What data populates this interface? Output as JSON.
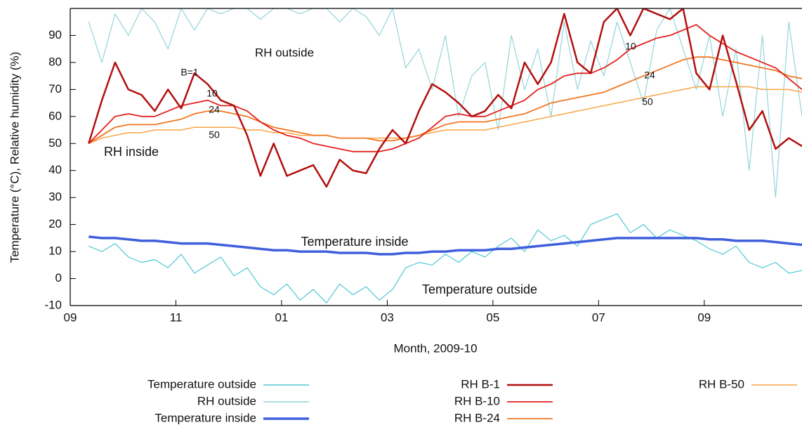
{
  "chart_data": {
    "type": "line",
    "xlabel": "Month, 2009-10",
    "ylabel": "Temperature (°C), Relative humidity (%)",
    "xlim": [
      0,
      13.85
    ],
    "ylim": [
      -10,
      100
    ],
    "xticks": [
      {
        "value": 0,
        "label": "09"
      },
      {
        "value": 2,
        "label": "11"
      },
      {
        "value": 4,
        "label": "01"
      },
      {
        "value": 6,
        "label": "03"
      },
      {
        "value": 8,
        "label": "05"
      },
      {
        "value": 10,
        "label": "07"
      },
      {
        "value": 12,
        "label": "09"
      }
    ],
    "yticks": [
      -10,
      0,
      10,
      20,
      30,
      40,
      50,
      60,
      70,
      80,
      90
    ],
    "annotations": [
      "RH outside",
      "B=1",
      "10",
      "24",
      "50",
      "RH inside",
      "Temperature inside",
      "Temperature outside",
      "10",
      "24",
      "50"
    ],
    "x": [
      0.35,
      0.6,
      0.85,
      1.1,
      1.35,
      1.6,
      1.85,
      2.1,
      2.35,
      2.6,
      2.85,
      3.1,
      3.35,
      3.6,
      3.85,
      4.1,
      4.35,
      4.6,
      4.85,
      5.1,
      5.35,
      5.6,
      5.85,
      6.1,
      6.35,
      6.6,
      6.85,
      7.1,
      7.35,
      7.6,
      7.85,
      8.1,
      8.35,
      8.6,
      8.85,
      9.1,
      9.35,
      9.6,
      9.85,
      10.1,
      10.35,
      10.6,
      10.85,
      11.1,
      11.35,
      11.6,
      11.85,
      12.1,
      12.35,
      12.6,
      12.85,
      13.1,
      13.35,
      13.6,
      13.85
    ],
    "series": [
      {
        "name": "Temperature outside",
        "color": "#4ec8d4",
        "values": [
          12,
          10,
          13,
          8,
          6,
          7,
          4,
          9,
          2,
          5,
          8,
          1,
          4,
          -3,
          -6,
          -2,
          -8,
          -4,
          -9,
          -2,
          -6,
          -3,
          -8,
          -4,
          4,
          6,
          5,
          9,
          6,
          10,
          8,
          12,
          15,
          10,
          18,
          14,
          16,
          12,
          20,
          22,
          24,
          17,
          20,
          15,
          18,
          16,
          14,
          11,
          9,
          12,
          6,
          4,
          6,
          2,
          3
        ]
      },
      {
        "name": "RH outside",
        "color": "#93d5d8",
        "values": [
          95,
          80,
          98,
          90,
          100,
          95,
          85,
          100,
          92,
          100,
          98,
          100,
          100,
          96,
          100,
          100,
          98,
          100,
          100,
          95,
          100,
          97,
          90,
          100,
          78,
          85,
          70,
          90,
          60,
          75,
          80,
          55,
          90,
          70,
          85,
          60,
          95,
          70,
          88,
          75,
          95,
          80,
          65,
          92,
          100,
          85,
          70,
          90,
          60,
          85,
          40,
          90,
          30,
          95,
          60
        ]
      },
      {
        "name": "Temperature inside",
        "color": "#3f5fdc",
        "values": [
          15.5,
          15,
          15,
          14.5,
          14,
          14,
          13.5,
          13,
          13,
          13,
          12.5,
          12,
          11.5,
          11,
          10.5,
          10.5,
          10,
          10,
          10,
          9.5,
          9.5,
          9.5,
          9,
          9,
          9.5,
          9.5,
          10,
          10,
          10.5,
          10.5,
          10.5,
          11,
          11,
          11.5,
          12,
          12.5,
          13,
          13.5,
          14,
          14.5,
          15,
          15,
          15,
          15,
          15,
          15,
          15,
          14.5,
          14.5,
          14,
          14,
          14,
          13.5,
          13,
          12.5
        ]
      },
      {
        "name": "RH B-1",
        "color": "#b30f0f",
        "values": [
          50,
          66,
          80,
          70,
          68,
          62,
          70,
          63,
          76,
          72,
          66,
          64,
          53,
          38,
          50,
          38,
          40,
          42,
          34,
          44,
          40,
          39,
          48,
          55,
          50,
          62,
          72,
          69,
          65,
          60,
          62,
          68,
          63,
          80,
          72,
          80,
          98,
          80,
          76,
          95,
          100,
          90,
          100,
          98,
          96,
          100,
          76,
          70,
          90,
          73,
          55,
          62,
          48,
          52,
          49
        ]
      },
      {
        "name": "RH B-10",
        "color": "#e3201e",
        "values": [
          50,
          55,
          60,
          61,
          60,
          60,
          62,
          64,
          65,
          66,
          64,
          64,
          62,
          58,
          55,
          53,
          52,
          50,
          49,
          48,
          47,
          47,
          47,
          48,
          50,
          52,
          56,
          60,
          61,
          60,
          60,
          62,
          64,
          66,
          70,
          72,
          75,
          76,
          76,
          78,
          81,
          85,
          87,
          89,
          90,
          92,
          94,
          90,
          87,
          84,
          82,
          80,
          78,
          74,
          70
        ]
      },
      {
        "name": "RH B-24",
        "color": "#f07722",
        "values": [
          50,
          53,
          56,
          57,
          57,
          57,
          58,
          59,
          61,
          62,
          62,
          61,
          60,
          58,
          56,
          55,
          54,
          53,
          53,
          52,
          52,
          52,
          51,
          51,
          52,
          53,
          55,
          57,
          58,
          58,
          58,
          59,
          60,
          61,
          63,
          65,
          66,
          67,
          68,
          69,
          71,
          73,
          75,
          77,
          79,
          81,
          82,
          82,
          81,
          80,
          79,
          78,
          77,
          75,
          74
        ]
      },
      {
        "name": "RH B-50",
        "color": "#f9a443",
        "values": [
          50,
          52,
          53,
          54,
          54,
          55,
          55,
          55,
          56,
          56,
          56,
          56,
          55,
          55,
          54,
          54,
          53,
          53,
          53,
          52,
          52,
          52,
          52,
          52,
          52,
          53,
          54,
          55,
          55,
          55,
          55,
          56,
          57,
          58,
          59,
          60,
          61,
          62,
          63,
          64,
          65,
          66,
          67,
          68,
          69,
          70,
          71,
          71,
          71,
          71,
          71,
          70,
          70,
          70,
          69
        ]
      }
    ]
  }
}
